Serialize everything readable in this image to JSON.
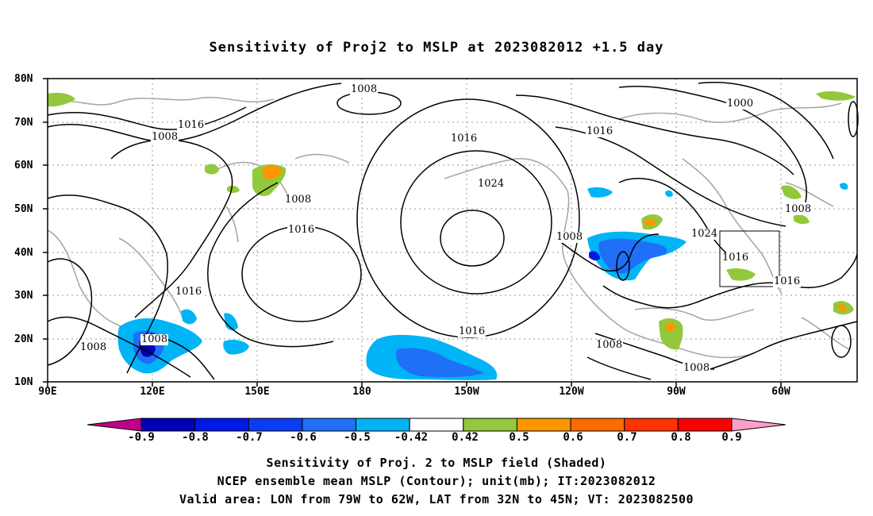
{
  "title": "Sensitivity of Proj2 to MSLP at 2023082012 +1.5 day",
  "lat_labels": [
    "80N",
    "70N",
    "60N",
    "50N",
    "40N",
    "30N",
    "20N",
    "10N"
  ],
  "lon_labels": [
    "90E",
    "120E",
    "150E",
    "180",
    "150W",
    "120W",
    "90W",
    "60W"
  ],
  "contour_labels": [
    "1008",
    "1016",
    "1008",
    "1016",
    "1024",
    "1016",
    "1000",
    "1016",
    "1008",
    "1016",
    "1008",
    "1024",
    "1016",
    "1016",
    "1008",
    "1016",
    "1008",
    "1008",
    "1008",
    "1008"
  ],
  "colorbar": {
    "labels": [
      "-0.9",
      "-0.8",
      "-0.7",
      "-0.6",
      "-0.5",
      "-0.42",
      "0.42",
      "0.5",
      "0.6",
      "0.7",
      "0.8",
      "0.9"
    ],
    "colors": [
      "#c0008a",
      "#0000b4",
      "#0018e8",
      "#0a3cf5",
      "#1f6ff7",
      "#00b4f5",
      "#ffffff",
      "#94c83c",
      "#ff9600",
      "#ff6a00",
      "#ff3200",
      "#ff0000",
      "#ff9ec8"
    ]
  },
  "captions": [
    "Sensitivity of Proj. 2 to MSLP field (Shaded)",
    "NCEP ensemble mean MSLP (Contour); unit(mb); IT:2023082012",
    "Valid area: LON from 79W to 62W, LAT from 32N to 45N; VT: 2023082500"
  ]
}
